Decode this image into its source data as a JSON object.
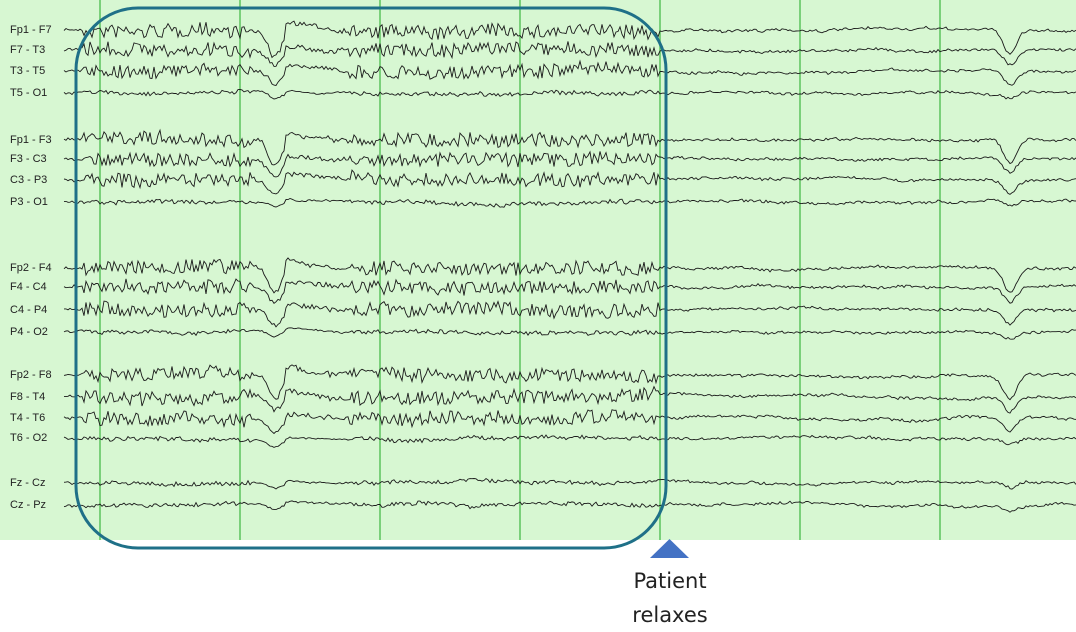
{
  "channels": [
    "Fp1 - F7",
    "F7 - T3",
    "T3 - T5",
    "T5 - O1",
    "Fp1 - F3",
    "F3 - C3",
    "C3 - P3",
    "P3 - O1",
    "Fp2 - F4",
    "F4 - C4",
    "C4 - P4",
    "P4 - O2",
    "Fp2 - F8",
    "F8 - T4",
    "T4 - T6",
    "T6 - O2",
    "Fz - Cz",
    "Cz - Pz"
  ],
  "annotation": {
    "line1": "Patient",
    "line2": "relaxes"
  }
}
